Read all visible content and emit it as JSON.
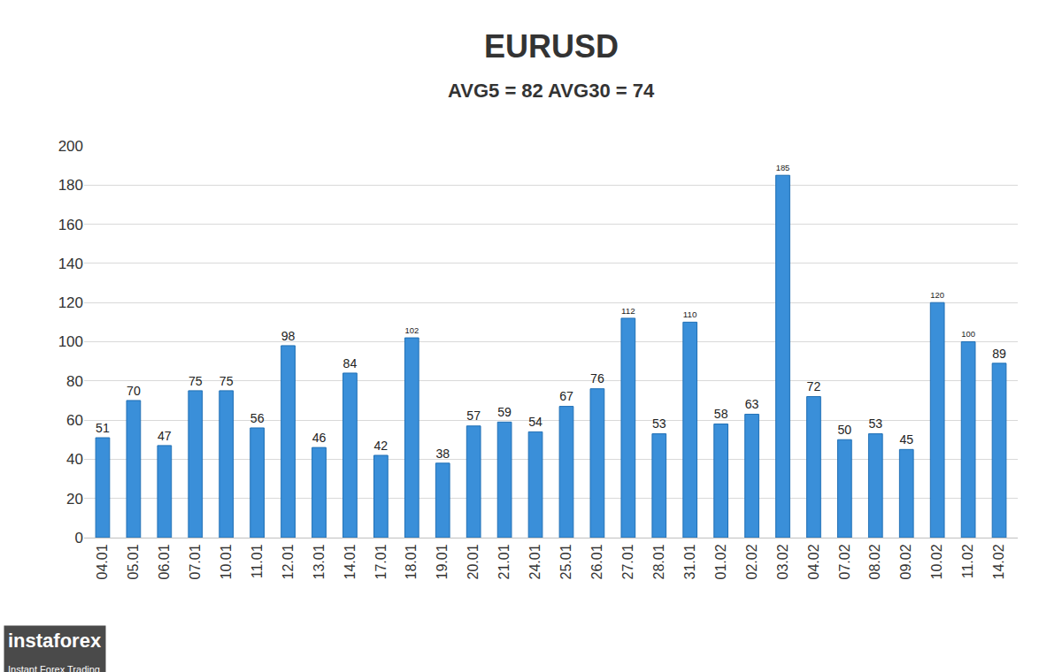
{
  "chart_data": {
    "type": "bar",
    "title": "EURUSD",
    "subtitle": "AVG5 = 82 AVG30 = 74",
    "categories": [
      "04.01",
      "05.01",
      "06.01",
      "07.01",
      "10.01",
      "11.01",
      "12.01",
      "13.01",
      "14.01",
      "17.01",
      "18.01",
      "19.01",
      "20.01",
      "21.01",
      "24.01",
      "25.01",
      "26.01",
      "27.01",
      "28.01",
      "31.01",
      "01.02",
      "02.02",
      "03.02",
      "04.02",
      "07.02",
      "08.02",
      "09.02",
      "10.02",
      "11.02",
      "14.02"
    ],
    "values": [
      51,
      70,
      47,
      75,
      75,
      56,
      98,
      46,
      84,
      42,
      102,
      38,
      57,
      59,
      54,
      67,
      76,
      112,
      53,
      110,
      58,
      63,
      185,
      72,
      50,
      53,
      45,
      120,
      100,
      89
    ],
    "color": "#3a8fd9",
    "ylim": [
      0,
      200
    ],
    "yticks": [
      0,
      20,
      40,
      60,
      80,
      100,
      120,
      140,
      160,
      180,
      200
    ],
    "grid": true,
    "data_labels": true,
    "annotations": [
      "instaforex",
      "Instant Forex Trading"
    ]
  }
}
